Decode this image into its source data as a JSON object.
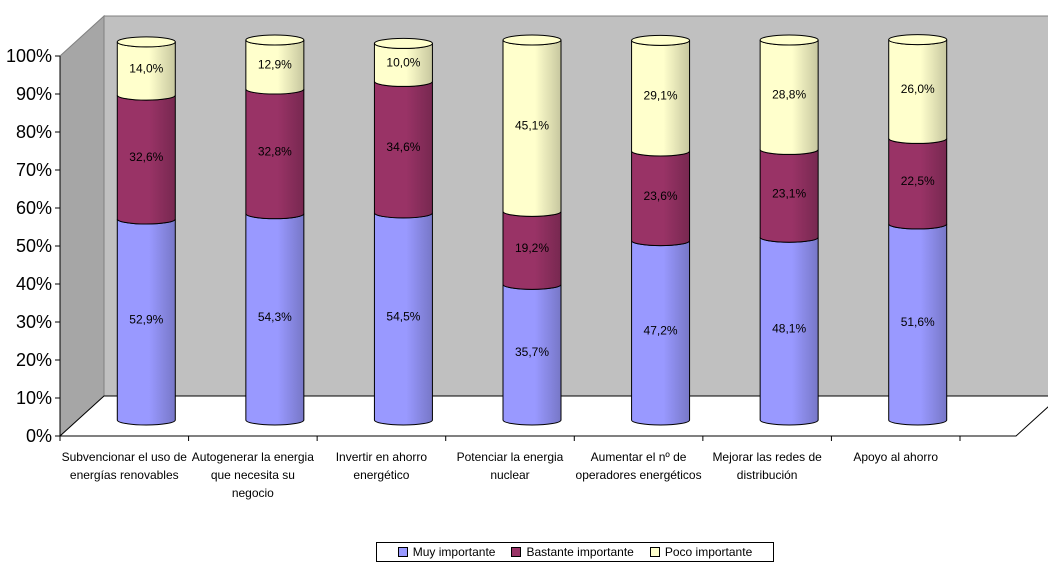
{
  "chart_data": {
    "type": "bar",
    "stacked": true,
    "three_d": true,
    "bar_shape": "cylinder",
    "categories": [
      "Subvencionar el uso de\nenergías renovables",
      "Autogenerar la energia\nque necesita su\nnegocio",
      "Invertir en  ahorro\nenergético",
      "Potenciar la energia\nnuclear",
      "Aumentar el nº de\noperadores energéticos",
      "Mejorar las redes de\ndistribución",
      "Apoyo al ahorro"
    ],
    "series": [
      {
        "name": "Muy importante",
        "color": "#9999ff",
        "values": [
          52.9,
          54.3,
          54.5,
          35.7,
          47.2,
          48.1,
          51.6
        ],
        "labels": [
          "52,9%",
          "54,3%",
          "54,5%",
          "35,7%",
          "47,2%",
          "48,1%",
          "51,6%"
        ]
      },
      {
        "name": "Bastante importante",
        "color": "#993366",
        "values": [
          32.6,
          32.8,
          34.6,
          19.2,
          23.6,
          23.1,
          22.5
        ],
        "labels": [
          "32,6%",
          "32,8%",
          "34,6%",
          "19,2%",
          "23,6%",
          "23,1%",
          "22,5%"
        ]
      },
      {
        "name": "Poco importante",
        "color": "#ffffcc",
        "values": [
          14.0,
          12.9,
          10.0,
          45.1,
          29.1,
          28.8,
          26.0
        ],
        "labels": [
          "14,0%",
          "12,9%",
          "10,0%",
          "45,1%",
          "29,1%",
          "28,8%",
          "26,0%"
        ]
      }
    ],
    "y_ticks": [
      "0%",
      "10%",
      "20%",
      "30%",
      "40%",
      "50%",
      "60%",
      "70%",
      "80%",
      "90%",
      "100%"
    ],
    "ylim": [
      0,
      100
    ],
    "background_wall_color": "#c0c0c0",
    "legend_position": "bottom"
  }
}
